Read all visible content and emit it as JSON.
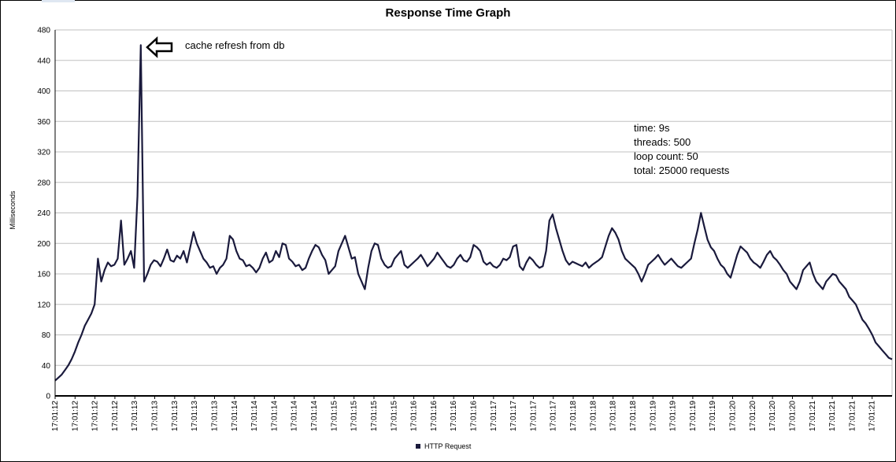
{
  "chart_data": {
    "type": "line",
    "title": "Response Time Graph",
    "ylabel": "Milliseconds",
    "xlabel": "",
    "ylim": [
      0,
      480
    ],
    "yticks": [
      0,
      40,
      80,
      120,
      160,
      200,
      240,
      280,
      320,
      360,
      400,
      440,
      480
    ],
    "grid": true,
    "legend_position": "bottom-center",
    "x_tick_labels": [
      "17:01:12",
      "17:01:12",
      "17:01:12",
      "17:01:12",
      "17:01:13",
      "17:01:13",
      "17:01:13",
      "17:01:13",
      "17:01:13",
      "17:01:14",
      "17:01:14",
      "17:01:14",
      "17:01:14",
      "17:01:14",
      "17:01:15",
      "17:01:15",
      "17:01:15",
      "17:01:15",
      "17:01:16",
      "17:01:16",
      "17:01:16",
      "17:01:16",
      "17:01:17",
      "17:01:17",
      "17:01:17",
      "17:01:17",
      "17:01:18",
      "17:01:18",
      "17:01:18",
      "17:01:18",
      "17:01:19",
      "17:01:19",
      "17:01:19",
      "17:01:19",
      "17:01:20",
      "17:01:20",
      "17:01:20",
      "17:01:20",
      "17:01:21",
      "17:01:21",
      "17:01:21",
      "17:01:21"
    ],
    "series": [
      {
        "name": "HTTP Request",
        "color": "#1a1a3c",
        "values": [
          20,
          24,
          28,
          34,
          40,
          48,
          58,
          70,
          80,
          92,
          100,
          108,
          120,
          180,
          150,
          165,
          175,
          170,
          172,
          180,
          230,
          172,
          180,
          190,
          168,
          262,
          460,
          150,
          160,
          172,
          178,
          176,
          170,
          180,
          192,
          178,
          176,
          184,
          180,
          190,
          175,
          195,
          215,
          200,
          190,
          180,
          175,
          168,
          170,
          160,
          168,
          172,
          180,
          210,
          205,
          190,
          180,
          178,
          170,
          172,
          168,
          162,
          168,
          180,
          188,
          175,
          178,
          190,
          182,
          200,
          198,
          180,
          176,
          170,
          172,
          165,
          168,
          180,
          190,
          198,
          195,
          185,
          178,
          160,
          165,
          170,
          190,
          200,
          210,
          195,
          180,
          182,
          160,
          150,
          140,
          168,
          190,
          200,
          198,
          180,
          172,
          168,
          170,
          180,
          185,
          190,
          172,
          168,
          172,
          176,
          180,
          185,
          178,
          170,
          175,
          180,
          188,
          182,
          176,
          170,
          168,
          172,
          180,
          185,
          178,
          176,
          182,
          198,
          195,
          190,
          176,
          172,
          175,
          170,
          168,
          172,
          180,
          178,
          182,
          196,
          198,
          170,
          165,
          175,
          182,
          178,
          172,
          168,
          170,
          190,
          230,
          238,
          220,
          205,
          190,
          178,
          172,
          176,
          174,
          172,
          170,
          175,
          168,
          172,
          175,
          178,
          182,
          196,
          210,
          220,
          214,
          205,
          190,
          180,
          176,
          172,
          168,
          160,
          150,
          160,
          172,
          176,
          180,
          185,
          178,
          172,
          176,
          180,
          175,
          170,
          168,
          172,
          176,
          180,
          200,
          218,
          240,
          222,
          205,
          195,
          190,
          180,
          172,
          168,
          160,
          155,
          170,
          185,
          196,
          192,
          188,
          180,
          175,
          172,
          168,
          176,
          185,
          190,
          182,
          178,
          172,
          165,
          160,
          150,
          145,
          140,
          150,
          165,
          170,
          175,
          160,
          150,
          145,
          140,
          150,
          155,
          160,
          158,
          150,
          145,
          140,
          130,
          125,
          120,
          110,
          100,
          95,
          88,
          80,
          70,
          65,
          60,
          55,
          50,
          48
        ]
      }
    ],
    "annotations": [
      {
        "text": "cache refresh from db"
      },
      {
        "text": "time: 9s"
      },
      {
        "text": "threads: 500"
      },
      {
        "text": "loop count: 50"
      },
      {
        "text": "total: 25000 requests"
      }
    ]
  }
}
